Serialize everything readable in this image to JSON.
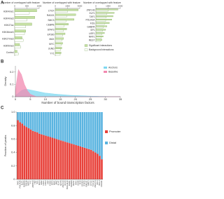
{
  "chart_data": [
    {
      "type": "hbar",
      "panel": "A",
      "xlabel": "Number of overlapped with feature",
      "categories": [
        "H3K4me1",
        "H3K4me3",
        "H3K27ac",
        "H3K36me3",
        "H3K27me3",
        "H3K9me3",
        "Control"
      ],
      "series": [
        {
          "color": "#c6e0a4",
          "values": [
            900,
            820,
            700,
            450,
            300,
            200,
            100
          ]
        },
        {
          "color": "#ffffff",
          "values": [
            600,
            500,
            450,
            400,
            350,
            250,
            150
          ]
        }
      ],
      "xlim": [
        0,
        1000
      ],
      "xticks": [
        0,
        500,
        1000
      ]
    },
    {
      "type": "hbar",
      "xlabel": "Number of overlapped with feature",
      "categories": [
        "CTCF",
        "RAD21",
        "SMC3",
        "CEBPB",
        "STAT3",
        "EP300",
        "MAX",
        "MYC",
        "JUND",
        "YY1"
      ],
      "series": [
        {
          "color": "#c6e0a4",
          "values": [
            2800,
            2500,
            2300,
            1600,
            1400,
            1200,
            1000,
            900,
            800,
            700
          ]
        },
        {
          "color": "#ffffff",
          "values": [
            1500,
            1400,
            1300,
            1100,
            1000,
            900,
            800,
            700,
            650,
            600
          ]
        }
      ],
      "xlim": [
        0,
        3000
      ],
      "xticks": [
        0,
        1500,
        3000
      ]
    },
    {
      "type": "hbar",
      "xlabel": "Number of overlapped with feature",
      "categories": [
        "ZNF143",
        "ELF1",
        "TAF1",
        "POLR2A",
        "FOS",
        "GABPA",
        "SP1",
        "USF1",
        "NRF1",
        "REST"
      ],
      "series": [
        {
          "name": "Significant interactions",
          "color": "#c6e0a4",
          "values": [
            1800,
            1500,
            1400,
            1300,
            1100,
            900,
            800,
            700,
            600,
            500
          ]
        },
        {
          "name": "Background interactions",
          "color": "#ffffff",
          "values": [
            1000,
            900,
            850,
            800,
            700,
            600,
            550,
            500,
            450,
            400
          ]
        }
      ],
      "xlim": [
        0,
        2000
      ],
      "xticks": [
        0,
        1000,
        2000
      ]
    },
    {
      "type": "area",
      "panel": "B",
      "ylabel": "Density",
      "xlabel": "Number of bound transcription factors",
      "x": [
        0,
        1,
        2,
        3,
        4,
        5,
        6,
        7,
        8,
        9,
        10,
        11,
        12,
        13,
        14,
        15,
        16,
        17,
        18,
        19,
        20,
        21,
        22,
        23,
        24,
        25,
        26,
        27,
        28,
        29,
        30,
        31,
        32,
        33,
        34,
        35
      ],
      "series": [
        {
          "name": "Anchors",
          "color": "#7fd8f0",
          "values": [
            0.01,
            0.03,
            0.05,
            0.06,
            0.06,
            0.055,
            0.05,
            0.045,
            0.04,
            0.035,
            0.03,
            0.028,
            0.025,
            0.022,
            0.02,
            0.018,
            0.016,
            0.014,
            0.012,
            0.011,
            0.01,
            0.009,
            0.008,
            0.007,
            0.006,
            0.005,
            0.004,
            0.004,
            0.003,
            0.003,
            0.002,
            0.002,
            0.001,
            0.001,
            0.001,
            0
          ]
        },
        {
          "name": "Baseline",
          "color": "#f28ab0",
          "values": [
            0.05,
            0.22,
            0.18,
            0.1,
            0.05,
            0.02,
            0.01,
            0,
            0,
            0,
            0,
            0,
            0,
            0,
            0,
            0,
            0,
            0,
            0,
            0,
            0,
            0,
            0,
            0,
            0,
            0,
            0,
            0,
            0,
            0,
            0,
            0,
            0,
            0,
            0,
            0
          ]
        }
      ],
      "xlim": [
        0,
        35
      ],
      "xticks": [
        0,
        5,
        10,
        15,
        20,
        25,
        30,
        35
      ],
      "ylim": [
        0,
        0.25
      ],
      "yticks": [
        0,
        0.1,
        0.2
      ]
    },
    {
      "type": "stacked-bar",
      "panel": "C",
      "ylabel": "Fraction of peaks",
      "categories": [
        "TAF1",
        "POLR2A",
        "ELF1",
        "GABPA",
        "SIN3A",
        "NRF1",
        "YY1",
        "ZBTB33",
        "TBP",
        "SP1",
        "E2F6",
        "MAX",
        "USF1",
        "USF2",
        "SRF",
        "CHD2",
        "ATF3",
        "MXI1",
        "MAZ",
        "ELK1",
        "NFYB",
        "ZNF143",
        "RFX5",
        "BHLHE40",
        "EGR1",
        "CEBPB",
        "REST",
        "MYC",
        "JUND",
        "FOS",
        "EP300",
        "STAT3",
        "RAD21",
        "SMC3",
        "CTCF",
        "TCF12",
        "ZNF274",
        "IRF3",
        "BCL3",
        "FOXA1"
      ],
      "series": [
        {
          "name": "Promoter",
          "color": "#e8413a",
          "values": [
            0.88,
            0.85,
            0.83,
            0.8,
            0.78,
            0.76,
            0.74,
            0.72,
            0.71,
            0.7,
            0.68,
            0.67,
            0.66,
            0.65,
            0.64,
            0.63,
            0.62,
            0.61,
            0.6,
            0.59,
            0.58,
            0.57,
            0.56,
            0.55,
            0.54,
            0.53,
            0.52,
            0.51,
            0.5,
            0.49,
            0.48,
            0.47,
            0.46,
            0.45,
            0.44,
            0.42,
            0.4,
            0.38,
            0.35,
            0.3
          ]
        },
        {
          "name": "Distal",
          "color": "#5ab4e0",
          "values": [
            0.12,
            0.15,
            0.17,
            0.2,
            0.22,
            0.24,
            0.26,
            0.28,
            0.29,
            0.3,
            0.32,
            0.33,
            0.34,
            0.35,
            0.36,
            0.37,
            0.38,
            0.39,
            0.4,
            0.41,
            0.42,
            0.43,
            0.44,
            0.45,
            0.46,
            0.47,
            0.48,
            0.49,
            0.5,
            0.51,
            0.52,
            0.53,
            0.54,
            0.55,
            0.56,
            0.58,
            0.6,
            0.62,
            0.65,
            0.7
          ]
        }
      ],
      "ylim": [
        0,
        1
      ],
      "yticks": [
        0,
        0.2,
        0.4,
        0.6,
        0.8,
        {
          "value": 1,
          "label": "1.0"
        }
      ]
    }
  ]
}
